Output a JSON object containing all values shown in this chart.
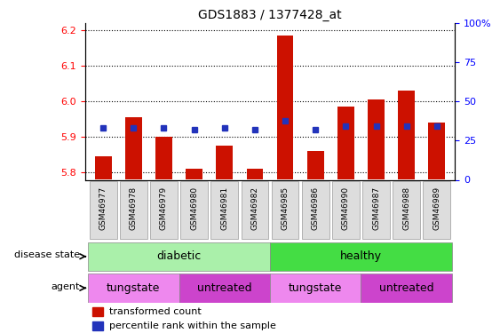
{
  "title": "GDS1883 / 1377428_at",
  "samples": [
    "GSM46977",
    "GSM46978",
    "GSM46979",
    "GSM46980",
    "GSM46981",
    "GSM46982",
    "GSM46985",
    "GSM46986",
    "GSM46990",
    "GSM46987",
    "GSM46988",
    "GSM46989"
  ],
  "transformed_count": [
    5.845,
    5.955,
    5.9,
    5.81,
    5.875,
    5.81,
    6.185,
    5.86,
    5.985,
    6.005,
    6.03,
    5.94
  ],
  "percentile_rank_y": [
    5.927,
    5.927,
    5.927,
    5.922,
    5.927,
    5.922,
    5.947,
    5.922,
    5.932,
    5.932,
    5.932,
    5.932
  ],
  "ylim_left": [
    5.78,
    6.22
  ],
  "yticks_left": [
    5.8,
    5.9,
    6.0,
    6.1,
    6.2
  ],
  "ylim_right": [
    0,
    100
  ],
  "yticks_right": [
    0,
    25,
    50,
    75,
    100
  ],
  "bar_color": "#cc1100",
  "marker_color": "#2233bb",
  "bar_bottom": 5.78,
  "disease_color_diabetic": "#aaf0aa",
  "disease_color_healthy": "#44dd44",
  "agent_color_tungstate": "#ee88ee",
  "agent_color_untreated": "#cc44cc",
  "legend_red_label": "transformed count",
  "legend_blue_label": "percentile rank within the sample",
  "background_color": "#ffffff",
  "label_fontsize": 9,
  "tick_fontsize": 8
}
